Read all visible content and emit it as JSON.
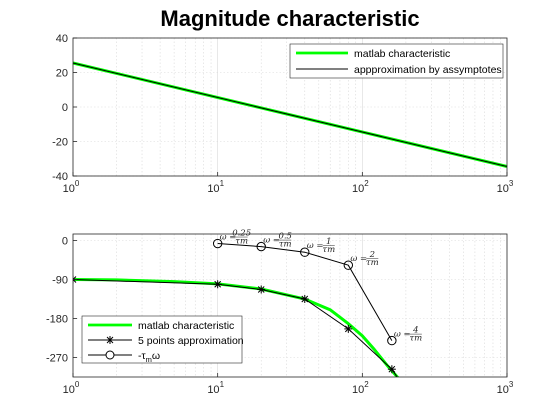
{
  "figure": {
    "title": "Magnitude characteristic"
  },
  "chart_data": [
    {
      "type": "line",
      "title": "Magnitude characteristic",
      "xscale": "log",
      "xlim": [
        1,
        1000
      ],
      "ylim": [
        -40,
        40
      ],
      "xticks": [
        1,
        10,
        100,
        1000
      ],
      "xtick_labels": [
        {
          "base": "10",
          "exp": "0"
        },
        {
          "base": "10",
          "exp": "1"
        },
        {
          "base": "10",
          "exp": "2"
        },
        {
          "base": "10",
          "exp": "3"
        }
      ],
      "yticks": [
        -40,
        -20,
        0,
        20,
        40
      ],
      "ytick_labels": [
        "-40",
        "-20",
        "0",
        "20",
        "40"
      ],
      "grid": true,
      "legend_position": "top-right",
      "series": [
        {
          "name": "matlab characteristic",
          "color": "#00ff00",
          "style": "solid-thick",
          "x": [
            1,
            1000
          ],
          "y": [
            25.5,
            -34.5
          ]
        },
        {
          "name": "appproximation by assymptotes",
          "color": "#000000",
          "style": "solid",
          "x": [
            1,
            1000
          ],
          "y": [
            25.5,
            -34.5
          ]
        }
      ]
    },
    {
      "type": "line",
      "xscale": "log",
      "xlim": [
        1,
        1000
      ],
      "ylim": [
        -315,
        15
      ],
      "xticks": [
        1,
        10,
        100,
        1000
      ],
      "xtick_labels": [
        {
          "base": "10",
          "exp": "0"
        },
        {
          "base": "10",
          "exp": "1"
        },
        {
          "base": "10",
          "exp": "2"
        },
        {
          "base": "10",
          "exp": "3"
        }
      ],
      "yticks": [
        0,
        -90,
        -180,
        -270
      ],
      "ytick_labels": [
        "0",
        "-90",
        "-180",
        "-270"
      ],
      "grid": true,
      "legend_position": "bottom-left",
      "series": [
        {
          "name": "matlab characteristic",
          "color": "#00ff00",
          "style": "solid-thick",
          "x": [
            1,
            2,
            5,
            10,
            20,
            40,
            60,
            80,
            100,
            120,
            150,
            180,
            200
          ],
          "y": [
            -90,
            -91,
            -95,
            -100,
            -112,
            -135,
            -160,
            -192,
            -220,
            -250,
            -290,
            -320,
            -345
          ]
        },
        {
          "name": "5 points approximation",
          "color": "#000000",
          "style": "solid",
          "marker": "asterisk",
          "x": [
            1,
            10,
            20,
            40,
            80,
            160,
            200
          ],
          "y": [
            -90,
            -101,
            -113,
            -135,
            -204,
            -297,
            -345
          ]
        },
        {
          "name": "-τ_mω",
          "color": "#000000",
          "style": "solid",
          "marker": "circle",
          "x": [
            10,
            20,
            40,
            80,
            160
          ],
          "y": [
            -7,
            -14,
            -27,
            -57,
            -231
          ]
        }
      ],
      "annotations": [
        {
          "text": "ω = 0.25/τm",
          "x": 10,
          "y": -7
        },
        {
          "text": "ω = 0.5/τm",
          "x": 20,
          "y": -14
        },
        {
          "text": "ω = 1/τm",
          "x": 40,
          "y": -27
        },
        {
          "text": "ω = 2/τm",
          "x": 80,
          "y": -57
        },
        {
          "text": "ω = 4/τm",
          "x": 160,
          "y": -231
        }
      ]
    }
  ],
  "legend_labels": {
    "top": [
      "matlab characteristic",
      "appproximation by assymptotes"
    ],
    "bottom": [
      "matlab characteristic",
      "5 points approximation",
      "-τ",
      "m",
      "ω"
    ]
  },
  "annotation_labels": [
    {
      "lhs": "ω =",
      "num": "0.25",
      "den": "τm"
    },
    {
      "lhs": "ω =",
      "num": "0.5",
      "den": "τm"
    },
    {
      "lhs": "ω =",
      "num": "1",
      "den": "τm"
    },
    {
      "lhs": "ω =",
      "num": "2",
      "den": "τm"
    },
    {
      "lhs": "ω =",
      "num": "4",
      "den": "τm"
    }
  ]
}
